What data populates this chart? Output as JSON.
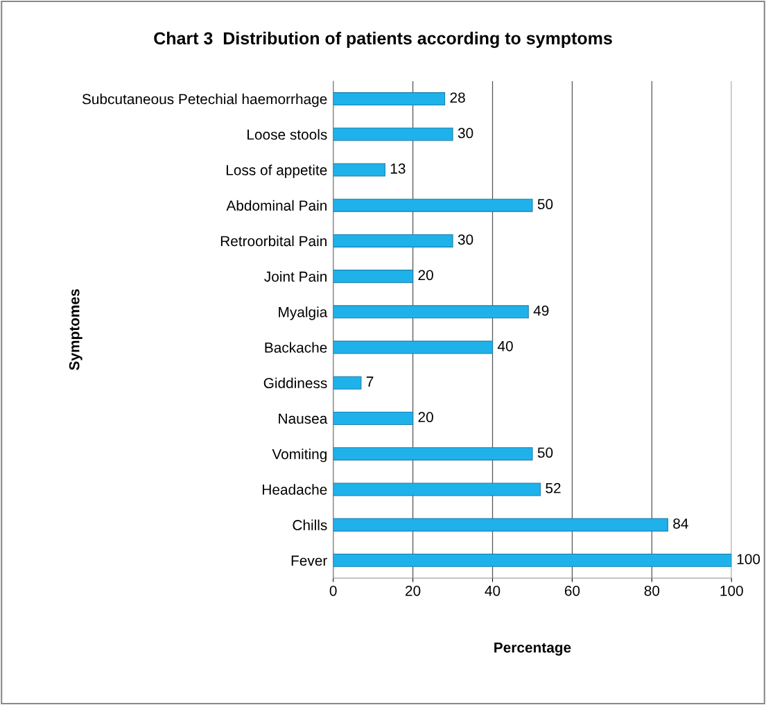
{
  "chart_data": {
    "type": "bar",
    "orientation": "horizontal",
    "title": "Chart 3  Distribution of patients according to symptoms",
    "xlabel": "Percentage",
    "ylabel": "Symptomes",
    "categories": [
      "Subcutaneous Petechial haemorrhage",
      "Loose stools",
      "Loss of appetite",
      "Abdominal Pain",
      "Retroorbital Pain",
      "Joint Pain",
      "Myalgia",
      "Backache",
      "Giddiness",
      "Nausea",
      "Vomiting",
      "Headache",
      "Chills",
      "Fever"
    ],
    "values": [
      28,
      30,
      13,
      50,
      30,
      20,
      49,
      40,
      7,
      20,
      50,
      52,
      84,
      100
    ],
    "color": "#1fb2ea",
    "xlim": [
      0,
      100
    ],
    "xticks": [
      0,
      20,
      40,
      60,
      80,
      100
    ],
    "grid": "x",
    "data_labels": true,
    "legend": false
  }
}
